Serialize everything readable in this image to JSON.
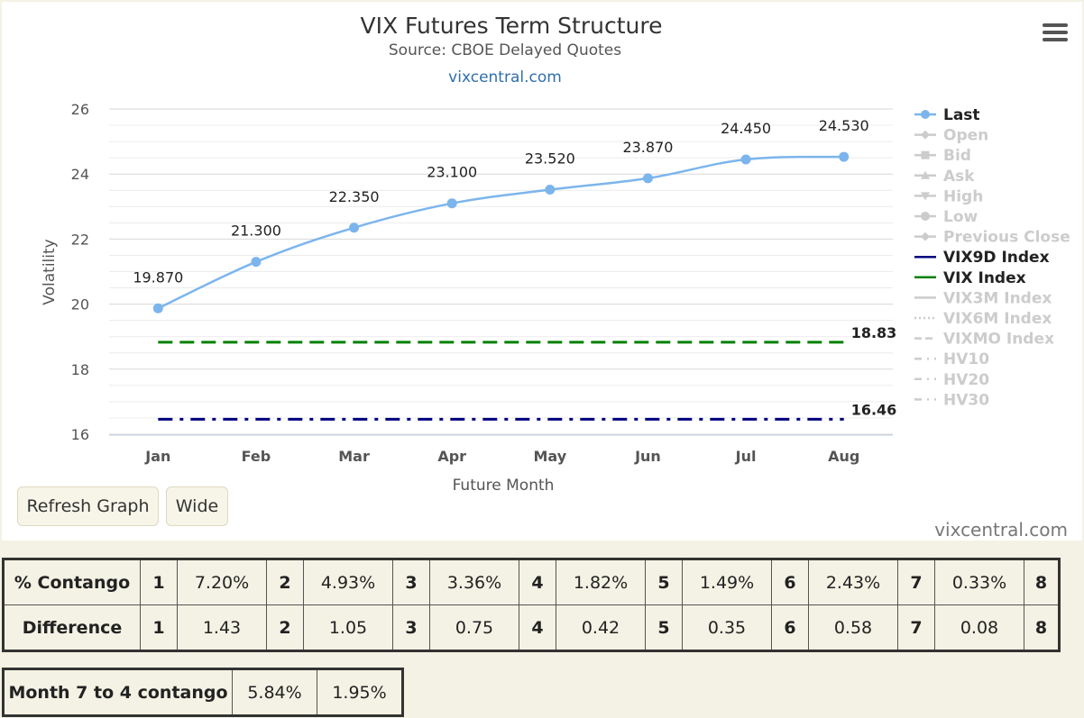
{
  "header": {
    "title": "VIX Futures Term Structure",
    "subtitle": "Source: CBOE Delayed Quotes",
    "site": "vixcentral.com"
  },
  "buttons": {
    "refresh": "Refresh Graph",
    "wide": "Wide"
  },
  "credits": "vixcentral.com",
  "chart_data": {
    "type": "line",
    "xlabel": "Future Month",
    "ylabel": "Volatility",
    "categories": [
      "Jan",
      "Feb",
      "Mar",
      "Apr",
      "May",
      "Jun",
      "Jul",
      "Aug"
    ],
    "ylim": [
      16,
      26
    ],
    "yticks": [
      "16",
      "18",
      "20",
      "22",
      "24",
      "26"
    ],
    "grid": true,
    "series": [
      {
        "name": "Last",
        "values": [
          19.87,
          21.3,
          22.35,
          23.1,
          23.52,
          23.87,
          24.45,
          24.53
        ],
        "labels": [
          "19.870",
          "21.300",
          "22.350",
          "23.100",
          "23.520",
          "23.870",
          "24.450",
          "24.530"
        ],
        "color": "#7cb5ec",
        "style": "solid-markers"
      },
      {
        "name": "VIX9D Index",
        "values": [
          16.46,
          16.46,
          16.46,
          16.46,
          16.46,
          16.46,
          16.46,
          16.46
        ],
        "end_label": "16.46",
        "color": "#000080",
        "style": "dash-dot"
      },
      {
        "name": "VIX Index",
        "values": [
          18.83,
          18.83,
          18.83,
          18.83,
          18.83,
          18.83,
          18.83,
          18.83
        ],
        "end_label": "18.83",
        "color": "#008000",
        "style": "dash"
      }
    ],
    "legend": {
      "placement": "right",
      "items": [
        {
          "name": "Last",
          "enabled": true,
          "color": "#7cb5ec",
          "symbol": "line-circle"
        },
        {
          "name": "Open",
          "enabled": false,
          "symbol": "line-diamond"
        },
        {
          "name": "Bid",
          "enabled": false,
          "symbol": "line-square"
        },
        {
          "name": "Ask",
          "enabled": false,
          "symbol": "line-triangle"
        },
        {
          "name": "High",
          "enabled": false,
          "symbol": "line-triangle-down"
        },
        {
          "name": "Low",
          "enabled": false,
          "symbol": "line-circle"
        },
        {
          "name": "Previous Close",
          "enabled": false,
          "symbol": "line-diamond"
        },
        {
          "name": "VIX9D Index",
          "enabled": true,
          "color": "#000080",
          "symbol": "line"
        },
        {
          "name": "VIX Index",
          "enabled": true,
          "color": "#008000",
          "symbol": "line"
        },
        {
          "name": "VIX3M Index",
          "enabled": false,
          "symbol": "line"
        },
        {
          "name": "VIX6M Index",
          "enabled": false,
          "symbol": "dotted"
        },
        {
          "name": "VIXMO Index",
          "enabled": false,
          "symbol": "dashed"
        },
        {
          "name": "HV10",
          "enabled": false,
          "symbol": "dash-dot"
        },
        {
          "name": "HV20",
          "enabled": false,
          "symbol": "dash-dot"
        },
        {
          "name": "HV30",
          "enabled": false,
          "symbol": "dash-dot"
        }
      ]
    }
  },
  "contango_table": {
    "rows": [
      {
        "label": "% Contango",
        "cells": [
          "1",
          "7.20%",
          "2",
          "4.93%",
          "3",
          "3.36%",
          "4",
          "1.82%",
          "5",
          "1.49%",
          "6",
          "2.43%",
          "7",
          "0.33%",
          "8"
        ]
      },
      {
        "label": "Difference",
        "cells": [
          "1",
          "1.43",
          "2",
          "1.05",
          "3",
          "0.75",
          "4",
          "0.42",
          "5",
          "0.35",
          "6",
          "0.58",
          "7",
          "0.08",
          "8"
        ]
      }
    ]
  },
  "month_table": {
    "label": "Month 7 to 4 contango",
    "values": [
      "5.84%",
      "1.95%"
    ]
  }
}
